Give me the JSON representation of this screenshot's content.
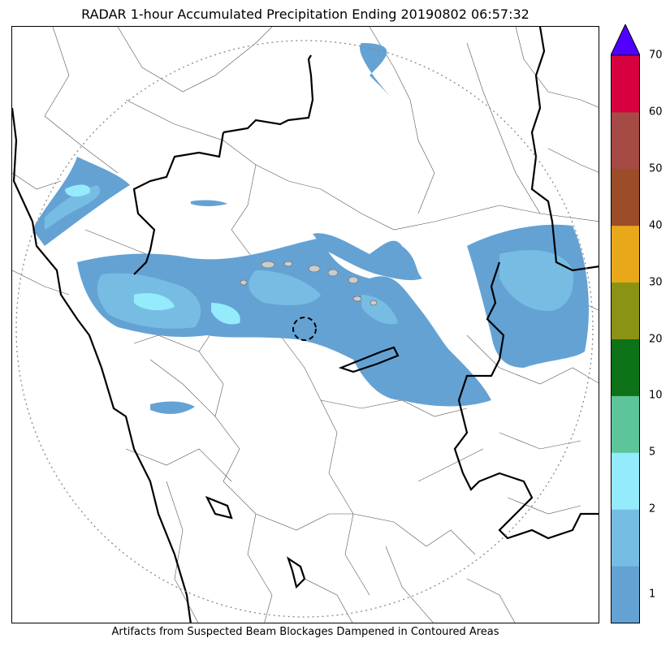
{
  "title": "RADAR 1-hour Accumulated Precipitation Ending 20190802 06:57:32",
  "footnote": "Artifacts from Suspected Beam Blockages Dampened in Contoured Areas",
  "colorbar": {
    "levels": [
      {
        "label": "",
        "color": "#64a2d4"
      },
      {
        "label": "1",
        "color": "#77bde3"
      },
      {
        "label": "2",
        "color": "#94ebfc"
      },
      {
        "label": "5",
        "color": "#5ec49a"
      },
      {
        "label": "10",
        "color": "#0d7218"
      },
      {
        "label": "20",
        "color": "#8b9314"
      },
      {
        "label": "30",
        "color": "#e9a81a"
      },
      {
        "label": "40",
        "color": "#9a4d28"
      },
      {
        "label": "50",
        "color": "#a54a44"
      },
      {
        "label": "60",
        "color": "#d6013e"
      },
      {
        "label": "70",
        "color": "#5000ff"
      }
    ],
    "over_color": "#5000ff",
    "tick_labels": [
      "1",
      "2",
      "5",
      "10",
      "20",
      "30",
      "40",
      "50",
      "60",
      "70"
    ]
  },
  "legend_colors": {
    "light_rain": "#64a2d4",
    "moderate_rain": "#77bde3",
    "heavy_rain": "#94ebfc",
    "boundary": "#000000",
    "range_ring": "#888888"
  }
}
